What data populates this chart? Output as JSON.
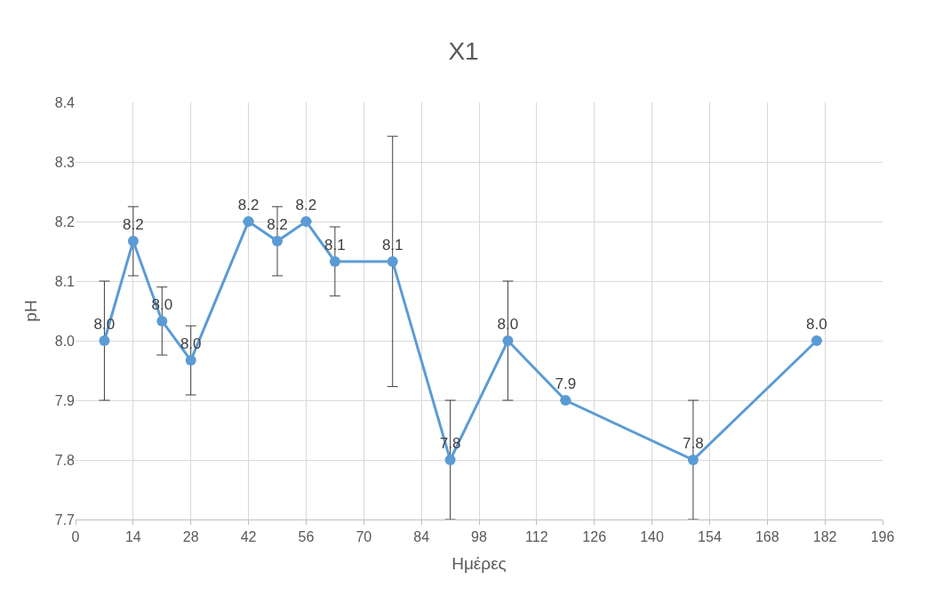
{
  "chart_data": {
    "type": "line",
    "title": "X1",
    "xlabel": "Ημέρες",
    "ylabel": "pH",
    "x": [
      7,
      14,
      21,
      28,
      42,
      49,
      56,
      63,
      77,
      91,
      105,
      119,
      150,
      180
    ],
    "series": [
      {
        "color": "#5b9bd5",
        "values": [
          8.0,
          8.167,
          8.033,
          7.967,
          8.2,
          8.167,
          8.2,
          8.133,
          8.133,
          7.8,
          8.0,
          7.9,
          7.8,
          8.0
        ],
        "errors": [
          0.1,
          0.058,
          0.057,
          0.058,
          null,
          0.058,
          null,
          0.058,
          0.21,
          0.1,
          0.1,
          null,
          0.1,
          null
        ],
        "value_labels": [
          "8.0",
          "8.2",
          "8.0",
          "8.0",
          "8.2",
          "8.2",
          "8.2",
          "8.1",
          "8.1",
          "7.8",
          "8.0",
          "7.9",
          "7.8",
          "8.0"
        ]
      }
    ],
    "xlim": [
      0,
      196
    ],
    "xticks": [
      0,
      14,
      28,
      42,
      56,
      70,
      84,
      98,
      112,
      126,
      140,
      154,
      168,
      182,
      196
    ],
    "ylim": [
      7.7,
      8.4
    ],
    "yticks": [
      {
        "value": 7.7,
        "label": "7.7"
      },
      {
        "value": 7.8,
        "label": "7.8"
      },
      {
        "value": 7.9,
        "label": "7.9"
      },
      {
        "value": 8.0,
        "label": "8.0"
      },
      {
        "value": 8.1,
        "label": "8.1"
      },
      {
        "value": 8.2,
        "label": "8.2"
      },
      {
        "value": 8.3,
        "label": "8.3"
      },
      {
        "value": 8.4,
        "label": "8.4"
      }
    ],
    "grid": true,
    "marker": "circle",
    "line_style": "solid",
    "legend": false
  }
}
